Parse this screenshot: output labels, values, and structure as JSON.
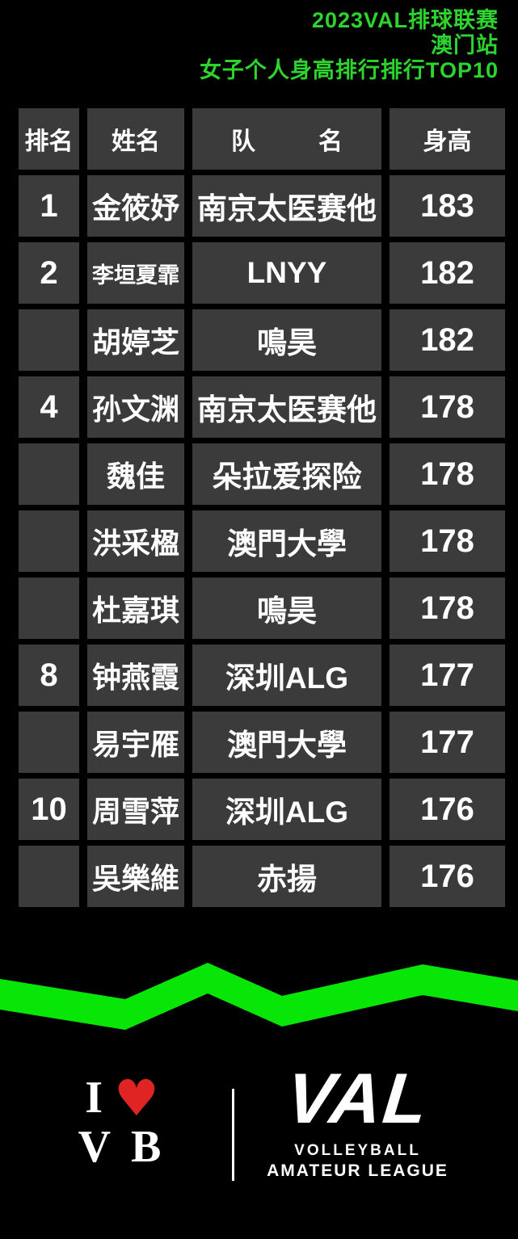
{
  "colors": {
    "background": "#000000",
    "cell_gray": "#3b3b3b",
    "title_green": "#2dd42d",
    "zigzag_green": "#07e607",
    "heart_red": "#e02424",
    "text_white": "#ffffff"
  },
  "header": {
    "title_lines": [
      "2023VAL排球联赛",
      "澳门站",
      "女子个人身高排行排行TOP10"
    ]
  },
  "table": {
    "columns": [
      "排名",
      "姓名",
      "队名",
      "身高"
    ],
    "rows": [
      {
        "rank": "1",
        "name": "金筱妤",
        "team": "南京太医赛他",
        "height": "183"
      },
      {
        "rank": "2",
        "name": "李垣夏霏",
        "team": "LNYY",
        "height": "182"
      },
      {
        "rank": "",
        "name": "胡婷芝",
        "team": "鳴昊",
        "height": "182"
      },
      {
        "rank": "4",
        "name": "孙文渊",
        "team": "南京太医赛他",
        "height": "178"
      },
      {
        "rank": "",
        "name": "魏佳",
        "team": "朵拉爱探险",
        "height": "178"
      },
      {
        "rank": "",
        "name": "洪采楹",
        "team": "澳門大學",
        "height": "178"
      },
      {
        "rank": "",
        "name": "杜嘉琪",
        "team": "鳴昊",
        "height": "178"
      },
      {
        "rank": "8",
        "name": "钟燕霞",
        "team": "深圳ALG",
        "height": "177"
      },
      {
        "rank": "",
        "name": "易宇雁",
        "team": "澳門大學",
        "height": "177"
      },
      {
        "rank": "10",
        "name": "周雪萍",
        "team": "深圳ALG",
        "height": "176"
      },
      {
        "rank": "",
        "name": "吳樂維",
        "team": "赤揚",
        "height": "176"
      }
    ]
  },
  "footer": {
    "ivb": {
      "i": "I",
      "heart": "♥",
      "vb": "V B"
    },
    "val": {
      "wordmark": "VAL",
      "line1": "VOLLEYBALL",
      "line2": "AMATEUR LEAGUE"
    }
  }
}
